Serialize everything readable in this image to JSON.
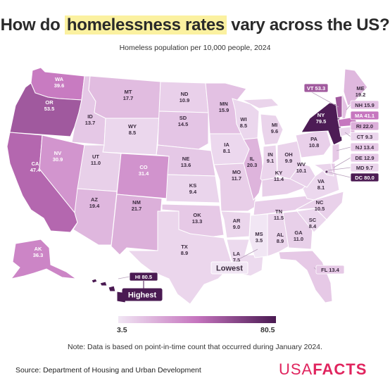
{
  "title_before": "How do ",
  "title_highlight": "homelessness rates",
  "title_after": " vary across the US?",
  "subtitle": "Homeless population per 10,000 people, 2024",
  "legend": {
    "min": "3.5",
    "max": "80.5",
    "colors": [
      "#f1e6f4",
      "#c574be",
      "#4a1a52"
    ]
  },
  "note": "Note: Data is based on point-in-time count that occurred during January 2024.",
  "source": "Source: Department of Housing and Urban Development",
  "logo": {
    "part1": "USA",
    "part2": "FACTS"
  },
  "callouts": {
    "highest": "Highest",
    "lowest": "Lowest"
  },
  "states": [
    {
      "code": "WA",
      "value": 39.6
    },
    {
      "code": "OR",
      "value": 53.5
    },
    {
      "code": "CA",
      "value": 47.4
    },
    {
      "code": "ID",
      "value": 13.7
    },
    {
      "code": "NV",
      "value": 30.9
    },
    {
      "code": "MT",
      "value": 17.7
    },
    {
      "code": "WY",
      "value": 8.5
    },
    {
      "code": "UT",
      "value": 11.0
    },
    {
      "code": "AZ",
      "value": 19.4
    },
    {
      "code": "CO",
      "value": 31.4
    },
    {
      "code": "NM",
      "value": 21.7
    },
    {
      "code": "ND",
      "value": 10.9
    },
    {
      "code": "SD",
      "value": 14.5
    },
    {
      "code": "NE",
      "value": 13.6
    },
    {
      "code": "KS",
      "value": 9.4
    },
    {
      "code": "OK",
      "value": 13.3
    },
    {
      "code": "TX",
      "value": 8.9
    },
    {
      "code": "MN",
      "value": 15.9
    },
    {
      "code": "IA",
      "value": 8.1
    },
    {
      "code": "MO",
      "value": 11.7
    },
    {
      "code": "AR",
      "value": 9.0
    },
    {
      "code": "LA",
      "value": 7.5
    },
    {
      "code": "WI",
      "value": 8.5
    },
    {
      "code": "IL",
      "value": 20.3
    },
    {
      "code": "MI",
      "value": 9.6
    },
    {
      "code": "IN",
      "value": 9.1
    },
    {
      "code": "OH",
      "value": 9.9
    },
    {
      "code": "KY",
      "value": 11.4
    },
    {
      "code": "TN",
      "value": 11.5
    },
    {
      "code": "MS",
      "value": 3.5
    },
    {
      "code": "AL",
      "value": 8.9
    },
    {
      "code": "GA",
      "value": 11.0
    },
    {
      "code": "FL",
      "value": 13.4
    },
    {
      "code": "SC",
      "value": 8.4
    },
    {
      "code": "NC",
      "value": 10.5
    },
    {
      "code": "VA",
      "value": 8.1
    },
    {
      "code": "WV",
      "value": 10.1
    },
    {
      "code": "PA",
      "value": 10.8
    },
    {
      "code": "NY",
      "value": 79.5
    },
    {
      "code": "ME",
      "value": 19.2
    },
    {
      "code": "VT",
      "value": 53.3
    },
    {
      "code": "NH",
      "value": 15.9
    },
    {
      "code": "MA",
      "value": 41.1
    },
    {
      "code": "RI",
      "value": 22.0
    },
    {
      "code": "CT",
      "value": 9.3
    },
    {
      "code": "NJ",
      "value": 13.4
    },
    {
      "code": "DE",
      "value": 12.9
    },
    {
      "code": "MD",
      "value": 9.7
    },
    {
      "code": "DC",
      "value": 80.0
    },
    {
      "code": "AK",
      "value": 36.3
    },
    {
      "code": "HI",
      "value": 80.5
    }
  ]
}
